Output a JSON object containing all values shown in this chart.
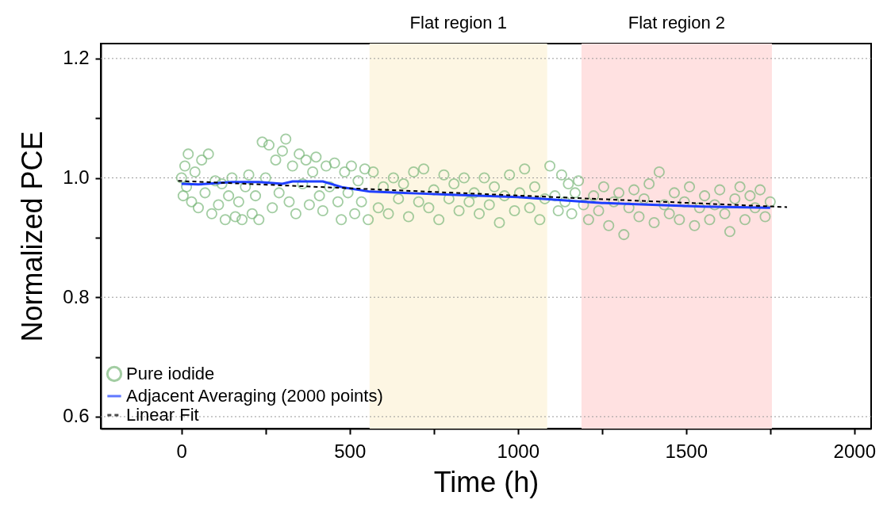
{
  "chart_data": {
    "type": "scatter",
    "xlabel": "Time (h)",
    "ylabel": "Normalized PCE",
    "xlim": [
      -240,
      2050
    ],
    "ylim": [
      0.58,
      1.225
    ],
    "xticks": [
      0,
      {
        "value": 250,
        "label": null
      },
      500,
      {
        "value": 750,
        "label": null
      },
      1000,
      {
        "value": 1250,
        "label": null
      },
      1500,
      {
        "value": 1750,
        "label": null
      },
      2000
    ],
    "yticks": [
      0.6,
      {
        "value": 0.7,
        "label": null
      },
      0.8,
      {
        "value": 0.9,
        "label": null
      },
      {
        "value": 1.0,
        "label": "1.0"
      },
      {
        "value": 1.1,
        "label": null
      },
      1.2
    ],
    "grid": "y",
    "legend": "bottom left",
    "bands": [
      {
        "axis": "x",
        "from": 559,
        "to": 1087,
        "label": "Flat region 1",
        "color": "#fdf6e3"
      },
      {
        "axis": "x",
        "from": 1189,
        "to": 1755,
        "label": "Flat region 2",
        "color": "#ffe1e1"
      }
    ],
    "series": [
      {
        "name": "Pure iodide",
        "marker": "circle",
        "color": "#7cb87c",
        "x": [
          0,
          5,
          10,
          15,
          20,
          30,
          40,
          50,
          60,
          70,
          80,
          90,
          100,
          110,
          120,
          130,
          140,
          150,
          160,
          170,
          180,
          190,
          200,
          210,
          220,
          230,
          240,
          250,
          260,
          270,
          280,
          290,
          300,
          310,
          320,
          330,
          340,
          350,
          360,
          370,
          380,
          390,
          400,
          410,
          420,
          430,
          440,
          455,
          465,
          475,
          485,
          495,
          505,
          515,
          525,
          535,
          545,
          555,
          570,
          585,
          600,
          615,
          630,
          645,
          660,
          675,
          690,
          705,
          720,
          735,
          750,
          765,
          780,
          795,
          810,
          825,
          840,
          855,
          870,
          885,
          900,
          915,
          930,
          945,
          960,
          975,
          990,
          1005,
          1020,
          1035,
          1050,
          1065,
          1080,
          1095,
          1110,
          1120,
          1130,
          1140,
          1150,
          1160,
          1170,
          1180,
          1195,
          1210,
          1225,
          1240,
          1255,
          1270,
          1285,
          1300,
          1315,
          1330,
          1345,
          1360,
          1375,
          1390,
          1405,
          1420,
          1435,
          1450,
          1465,
          1480,
          1495,
          1510,
          1525,
          1540,
          1555,
          1570,
          1585,
          1600,
          1615,
          1630,
          1645,
          1660,
          1675,
          1690,
          1705,
          1720,
          1735,
          1750
        ],
        "values": [
          1.0,
          0.97,
          1.02,
          0.985,
          1.04,
          0.96,
          1.01,
          0.95,
          1.03,
          0.975,
          1.04,
          0.94,
          0.995,
          0.955,
          0.99,
          0.93,
          0.97,
          1.0,
          0.935,
          0.96,
          0.93,
          0.985,
          1.005,
          0.94,
          0.97,
          0.93,
          1.06,
          1.0,
          1.055,
          0.95,
          1.03,
          0.975,
          1.045,
          1.065,
          0.96,
          1.02,
          0.94,
          1.04,
          0.99,
          1.03,
          0.955,
          1.01,
          1.035,
          0.97,
          0.945,
          1.02,
          0.985,
          1.025,
          0.96,
          0.93,
          1.01,
          0.975,
          1.02,
          0.94,
          0.995,
          0.96,
          1.015,
          0.93,
          1.01,
          0.95,
          0.985,
          0.94,
          1.0,
          0.965,
          0.99,
          0.935,
          1.01,
          0.96,
          1.015,
          0.95,
          0.98,
          0.93,
          1.005,
          0.965,
          0.99,
          0.945,
          1.0,
          0.96,
          0.975,
          0.94,
          1.0,
          0.955,
          0.985,
          0.925,
          0.97,
          1.005,
          0.945,
          0.975,
          1.015,
          0.95,
          0.985,
          0.93,
          0.965,
          1.02,
          0.97,
          0.945,
          1.005,
          0.96,
          0.99,
          0.94,
          0.975,
          0.995,
          0.955,
          0.93,
          0.97,
          0.945,
          0.985,
          0.92,
          0.96,
          0.975,
          0.905,
          0.95,
          0.98,
          0.935,
          0.965,
          0.99,
          0.925,
          1.01,
          0.955,
          0.94,
          0.975,
          0.93,
          0.96,
          0.985,
          0.92,
          0.95,
          0.97,
          0.93,
          0.955,
          0.98,
          0.94,
          0.91,
          0.965,
          0.985,
          0.93,
          0.97,
          0.95,
          0.98,
          0.935,
          0.96
        ]
      },
      {
        "name": "Adjacent Averaging (2000 points)",
        "type": "line",
        "line_style": "solid",
        "color": "#1f3fff",
        "x": [
          0,
          50,
          100,
          150,
          230,
          300,
          330,
          420,
          480,
          560,
          700,
          800,
          1000,
          1150,
          1250,
          1400,
          1550,
          1750
        ],
        "values": [
          0.99,
          0.989,
          0.991,
          0.993,
          0.993,
          0.99,
          0.994,
          0.994,
          0.984,
          0.977,
          0.974,
          0.972,
          0.968,
          0.962,
          0.958,
          0.955,
          0.952,
          0.95
        ]
      },
      {
        "name": "Linear Fit",
        "type": "line",
        "line_style": "dashed",
        "color": "#000000",
        "x": [
          -10,
          1800
        ],
        "values": [
          0.995,
          0.951
        ]
      }
    ]
  }
}
